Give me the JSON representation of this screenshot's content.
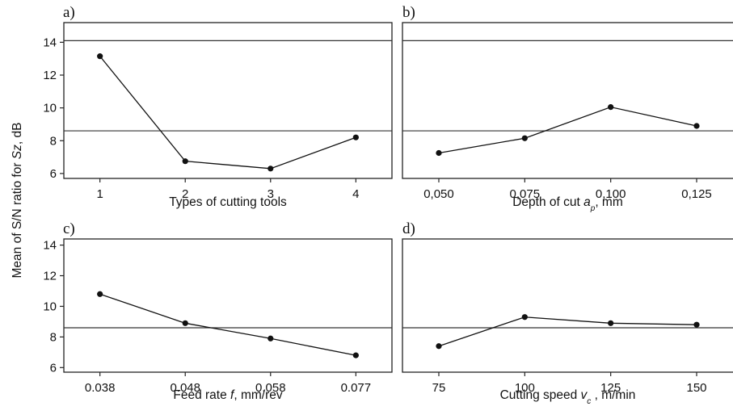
{
  "ylabel": {
    "prefix": "Mean of S/N ratio for ",
    "italic": "Sz",
    "suffix": ", dB"
  },
  "chart_data": [
    {
      "type": "line",
      "panel_label": "a)",
      "xlabel": {
        "text": "Types of cutting tools",
        "italic": "",
        "sub": "",
        "suffix": ""
      },
      "categories": [
        "1",
        "2",
        "3",
        "4"
      ],
      "values": [
        13.15,
        6.75,
        6.3,
        8.2
      ],
      "ylim": [
        5.7,
        15.2
      ],
      "yticks": [
        6,
        8,
        10,
        12,
        14
      ],
      "show_yticks": true,
      "ref_lines": [
        14.1,
        8.6
      ]
    },
    {
      "type": "line",
      "panel_label": "b)",
      "xlabel": {
        "text": "Depth of cut ",
        "italic": "a",
        "sub": "p",
        "suffix": ", mm"
      },
      "categories": [
        "0,050",
        "0,075",
        "0,100",
        "0,125"
      ],
      "values": [
        7.25,
        8.15,
        10.05,
        8.9
      ],
      "ylim": [
        5.7,
        15.2
      ],
      "yticks": [
        6,
        8,
        10,
        12,
        14
      ],
      "show_yticks": false,
      "ref_lines": [
        14.1,
        8.6
      ]
    },
    {
      "type": "line",
      "panel_label": "c)",
      "xlabel": {
        "text": "Feed rate ",
        "italic": "f",
        "sub": "",
        "suffix": ", mm/rev"
      },
      "categories": [
        "0.038",
        "0.048",
        "0.058",
        "0.077"
      ],
      "values": [
        10.8,
        8.9,
        7.9,
        6.8
      ],
      "ylim": [
        5.7,
        14.4
      ],
      "yticks": [
        6,
        8,
        10,
        12,
        14
      ],
      "show_yticks": true,
      "ref_lines": [
        8.6
      ]
    },
    {
      "type": "line",
      "panel_label": "d)",
      "xlabel": {
        "text": "Cutting speed ",
        "italic": "v",
        "sub": "c",
        "suffix": " , m/min"
      },
      "categories": [
        "75",
        "100",
        "125",
        "150"
      ],
      "values": [
        7.4,
        9.3,
        8.9,
        8.8
      ],
      "ylim": [
        5.7,
        14.4
      ],
      "yticks": [
        6,
        8,
        10,
        12,
        14
      ],
      "show_yticks": false,
      "ref_lines": [
        8.6
      ]
    }
  ]
}
